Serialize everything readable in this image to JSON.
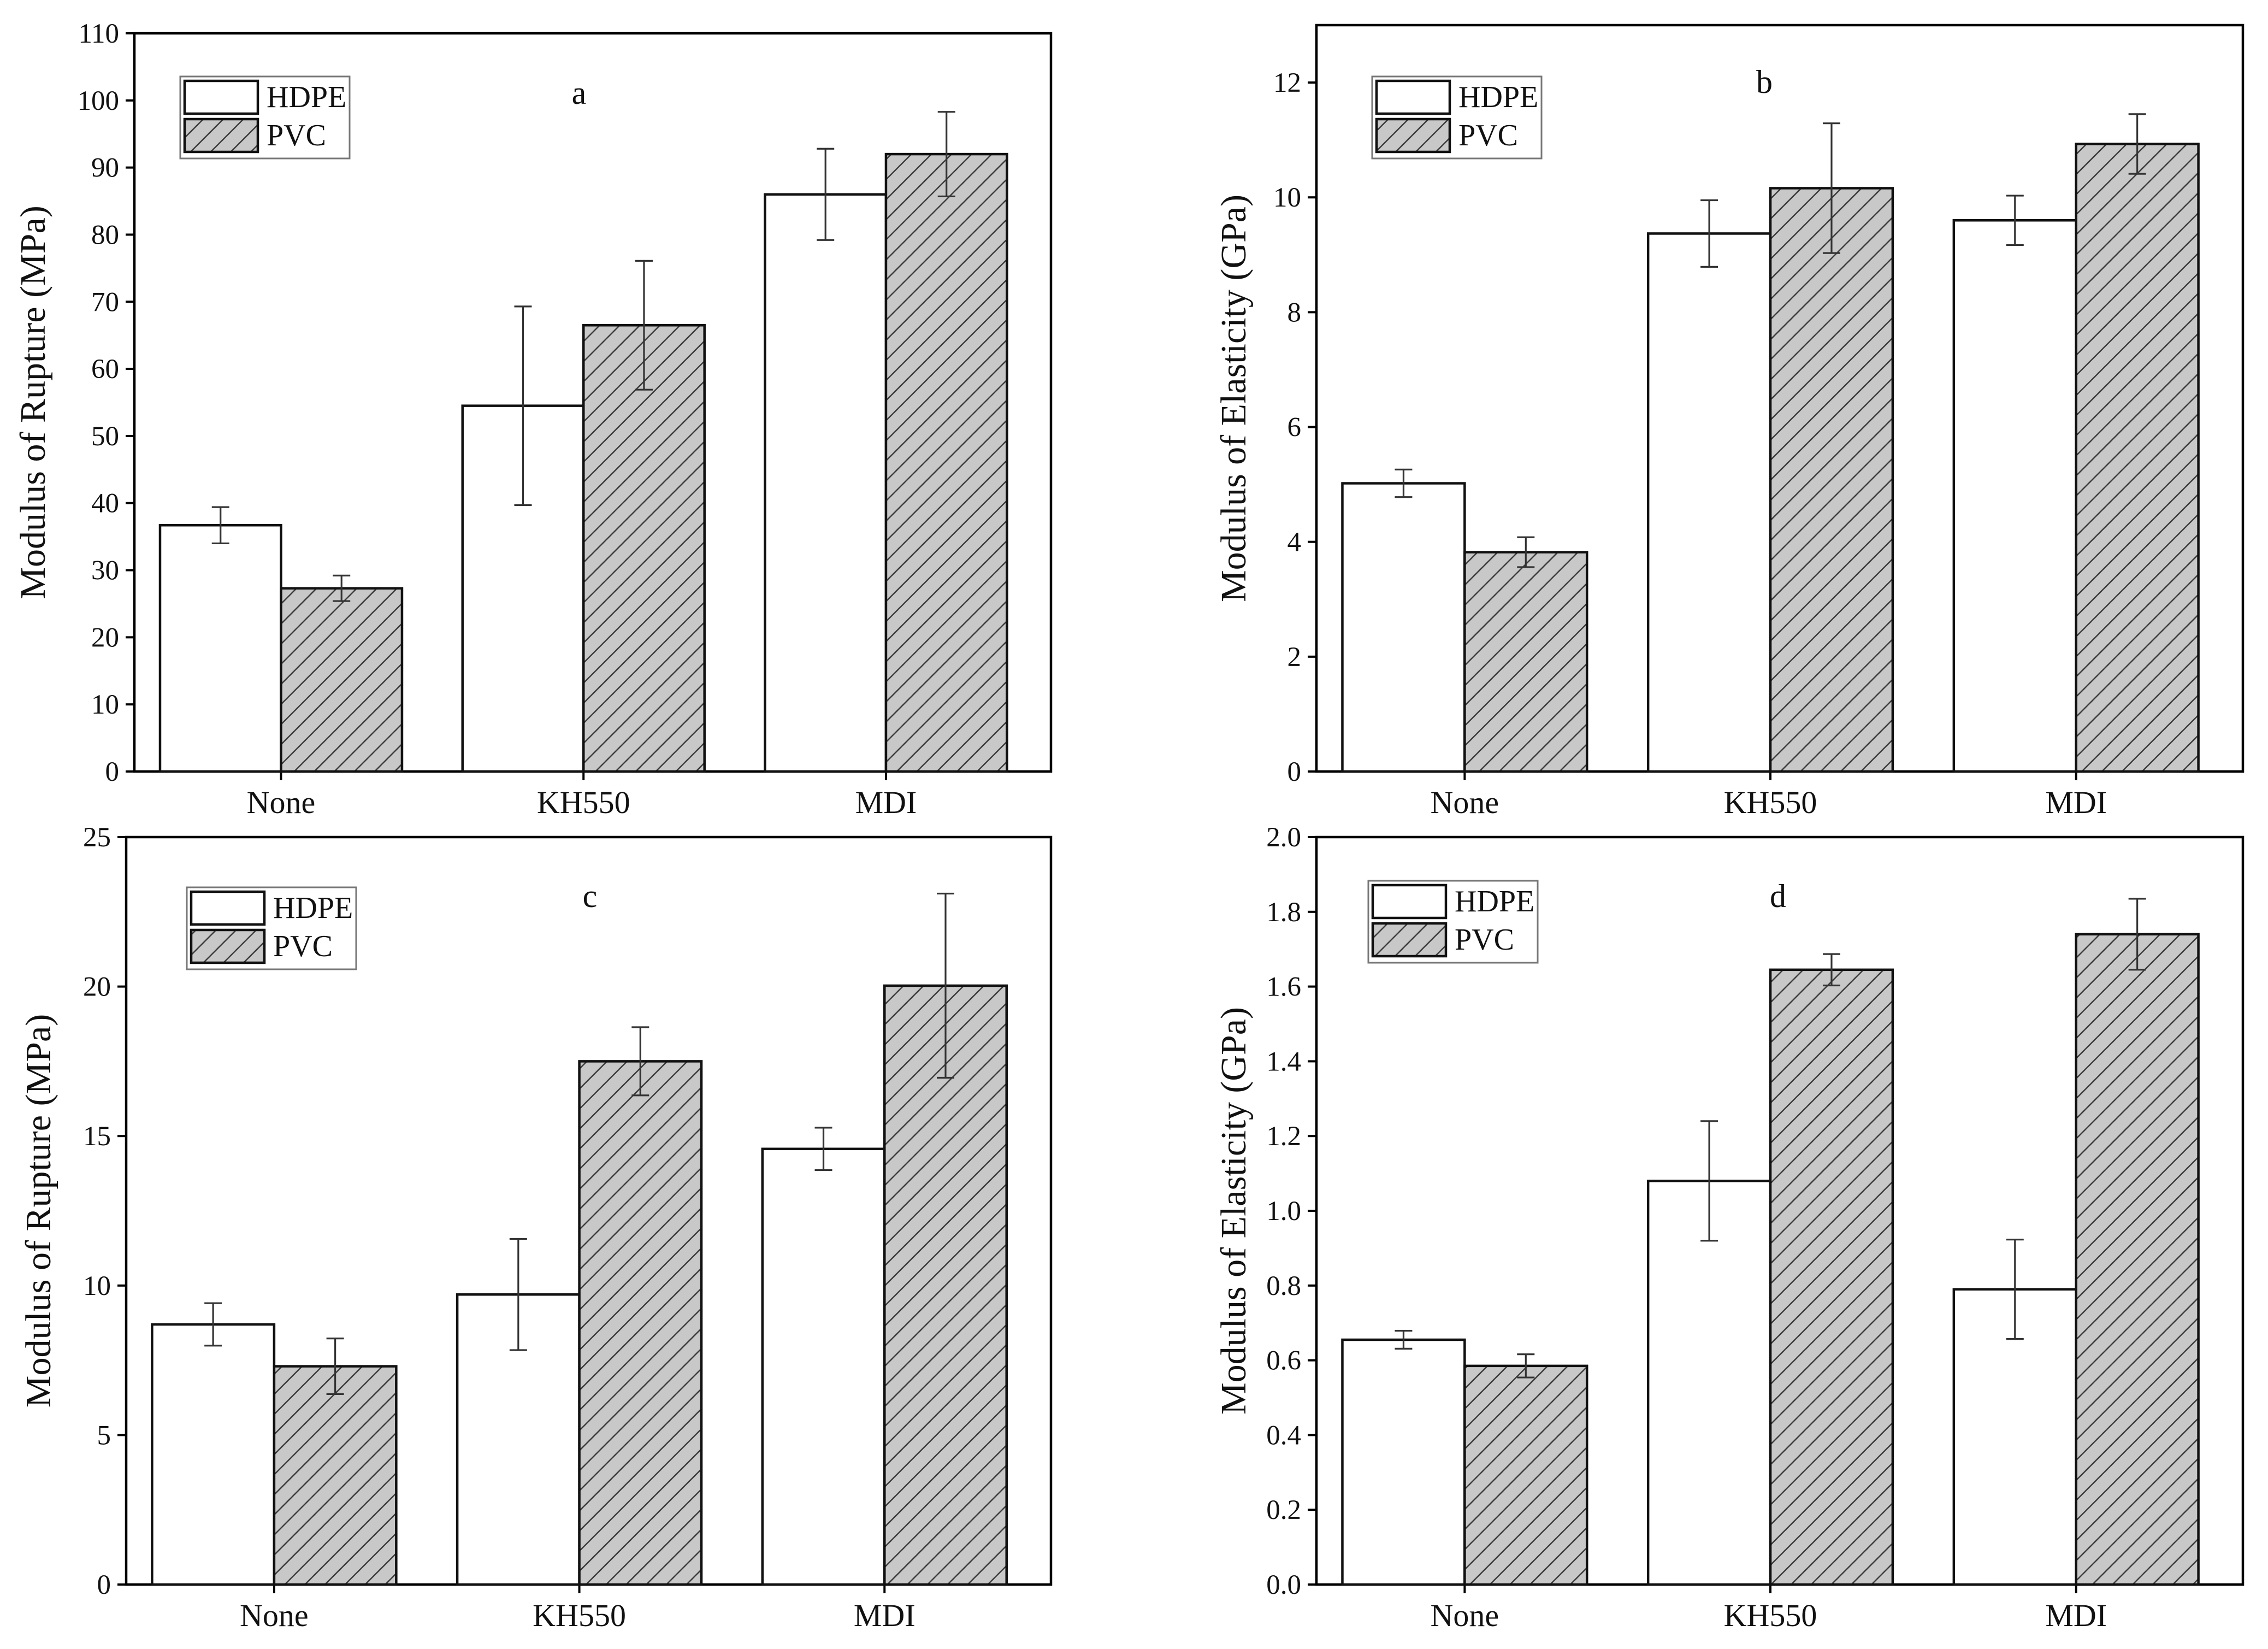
{
  "colors": {
    "hdpe_fill": "#ffffff",
    "pvc_fill": "#c8c8c8",
    "hatch_line": "#3a3a3a",
    "axis": "#000000"
  },
  "chart_data": [
    {
      "panel": "a",
      "type": "bar",
      "title": "a",
      "categories": [
        "None",
        "KH550",
        "MDI"
      ],
      "ylabel": "Modulus of Rupture (MPa)",
      "ylim": [
        0,
        110
      ],
      "yticks": [
        0,
        10,
        20,
        30,
        40,
        50,
        60,
        70,
        80,
        90,
        100,
        110
      ],
      "ytick_labels": [
        "0",
        "10",
        "20",
        "30",
        "40",
        "50",
        "60",
        "70",
        "80",
        "90",
        "100",
        "110"
      ],
      "legend": [
        "HDPE",
        "PVC"
      ],
      "legend_position": "top-left",
      "series": [
        {
          "name": "HDPE",
          "values": [
            36.7,
            54.5,
            86.0
          ],
          "errors": [
            2.7,
            14.8,
            6.8
          ]
        },
        {
          "name": "PVC",
          "values": [
            27.3,
            66.5,
            92.0
          ],
          "errors": [
            1.9,
            9.6,
            6.3
          ]
        }
      ]
    },
    {
      "panel": "b",
      "type": "bar",
      "title": "b",
      "categories": [
        "None",
        "KH550",
        "MDI"
      ],
      "ylabel": "Modulus of Elasticity (GPa)",
      "ylim": [
        0,
        13
      ],
      "yticks": [
        0,
        2,
        4,
        6,
        8,
        10,
        12
      ],
      "ytick_labels": [
        "0",
        "2",
        "4",
        "6",
        "8",
        "10",
        "12"
      ],
      "legend": [
        "HDPE",
        "PVC"
      ],
      "legend_position": "top-left",
      "series": [
        {
          "name": "HDPE",
          "values": [
            5.02,
            9.37,
            9.6
          ],
          "errors": [
            0.24,
            0.58,
            0.43
          ]
        },
        {
          "name": "PVC",
          "values": [
            3.82,
            10.16,
            10.93
          ],
          "errors": [
            0.26,
            1.13,
            0.52
          ]
        }
      ]
    },
    {
      "panel": "c",
      "type": "bar",
      "title": "c",
      "categories": [
        "None",
        "KH550",
        "MDI"
      ],
      "ylabel": "Modulus of Rupture (MPa)",
      "ylim": [
        0,
        25
      ],
      "yticks": [
        0,
        5,
        10,
        15,
        20,
        25
      ],
      "ytick_labels": [
        "0",
        "5",
        "10",
        "15",
        "20",
        "25"
      ],
      "legend": [
        "HDPE",
        "PVC"
      ],
      "legend_position": "top-left",
      "series": [
        {
          "name": "HDPE",
          "values": [
            8.7,
            9.7,
            14.57
          ],
          "errors": [
            0.71,
            1.86,
            0.71
          ]
        },
        {
          "name": "PVC",
          "values": [
            7.3,
            17.5,
            20.03
          ],
          "errors": [
            0.93,
            1.14,
            3.08
          ]
        }
      ]
    },
    {
      "panel": "d",
      "type": "bar",
      "title": "d",
      "categories": [
        "None",
        "KH550",
        "MDI"
      ],
      "ylabel": "Modulus of Elasticity (GPa)",
      "ylim": [
        0,
        2.0
      ],
      "yticks": [
        0,
        0.2,
        0.4,
        0.6,
        0.8,
        1.0,
        1.2,
        1.4,
        1.6,
        1.8,
        2.0
      ],
      "ytick_labels": [
        "0.0",
        "0.2",
        "0.4",
        "0.6",
        "0.8",
        "1.0",
        "1.2",
        "1.4",
        "1.6",
        "1.8",
        "2.0"
      ],
      "legend": [
        "HDPE",
        "PVC"
      ],
      "legend_position": "top-left",
      "series": [
        {
          "name": "HDPE",
          "values": [
            0.655,
            1.08,
            0.79
          ],
          "errors": [
            0.024,
            0.16,
            0.133
          ]
        },
        {
          "name": "PVC",
          "values": [
            0.585,
            1.645,
            1.74
          ],
          "errors": [
            0.031,
            0.042,
            0.095
          ]
        }
      ]
    }
  ]
}
